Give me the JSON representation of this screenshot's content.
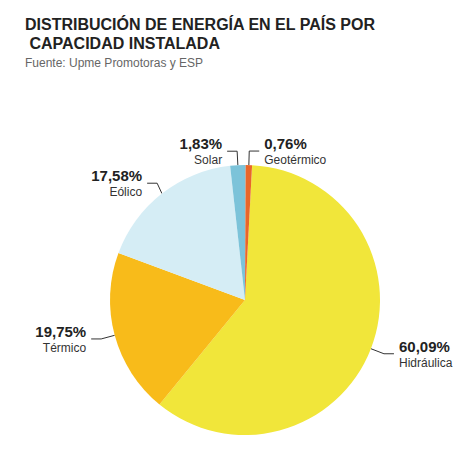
{
  "chart_data": {
    "type": "pie",
    "title": "DISTRIBUCIÓN DE ENERGÍA EN EL PAÍS POR CAPACIDAD INSTALADA",
    "subtitle": "Fuente: Upme Promotoras y ESP",
    "categories": [
      "Hidráulica",
      "Térmico",
      "Eólico",
      "Solar",
      "Geotérmico"
    ],
    "values": [
      60.09,
      19.75,
      17.58,
      1.83,
      0.76
    ],
    "value_labels": [
      "60,09%",
      "19,75%",
      "17,58%",
      "1,83%",
      "0,76%"
    ],
    "colors": [
      "#f1e63a",
      "#f8bb1a",
      "#d5edf5",
      "#7cc3d9",
      "#e8662a"
    ],
    "data_labels": true
  }
}
